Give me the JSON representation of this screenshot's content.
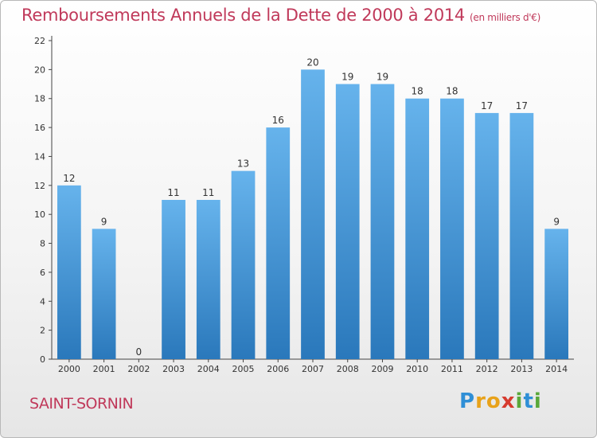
{
  "chart_data": {
    "type": "bar",
    "title": "Remboursements Annuels de la Dette de 2000 à 2014",
    "unit_note": "(en milliers d'€)",
    "categories": [
      "2000",
      "2001",
      "2002",
      "2003",
      "2004",
      "2005",
      "2006",
      "2007",
      "2008",
      "2009",
      "2010",
      "2011",
      "2012",
      "2013",
      "2014"
    ],
    "values": [
      12,
      9,
      0,
      11,
      11,
      13,
      16,
      20,
      19,
      19,
      18,
      18,
      17,
      17,
      9
    ],
    "ylim": [
      0,
      22
    ],
    "yticks": [
      0,
      2,
      4,
      6,
      8,
      10,
      12,
      14,
      16,
      18,
      20,
      22
    ],
    "grid": false,
    "bar_color_top": "#66b3ec",
    "bar_color_bottom": "#2a78bb"
  },
  "commune": "SAINT-SORNIN",
  "logo": [
    "P",
    "r",
    "o",
    "x",
    "i",
    "t",
    "i"
  ],
  "colors": {
    "title": "#c0395a",
    "axis": "#444444"
  }
}
